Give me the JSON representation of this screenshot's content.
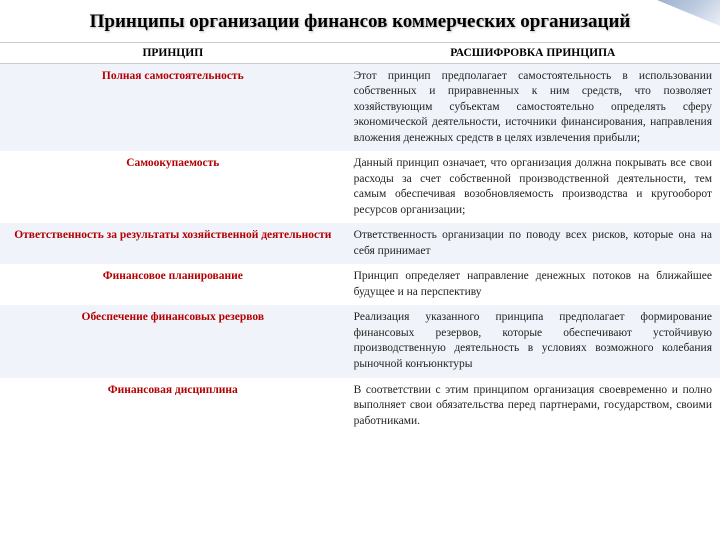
{
  "title": "Принципы организации финансов коммерческих организаций",
  "headers": {
    "principle": "ПРИНЦИП",
    "description": "РАСШИФРОВКА ПРИНЦИПА"
  },
  "rows": [
    {
      "principle": "Полная самостоятельность",
      "description": "Этот принцип предполагает самостоятельность в использовании собственных и приравненных к ним средств, что позволяет хозяйствующим субъектам самостоятельно определять сферу экономической деятельности, источники финансирования, направления вложения денежных средств в целях извлечения прибыли;",
      "band": "light"
    },
    {
      "principle": "Самоокупаемость",
      "description": "Данный принцип означает, что организация должна покрывать все свои расходы за счет собственной производственной деятельности, тем самым обеспечивая возобновляемость производства и кругооборот ресурсов организации;",
      "band": "white"
    },
    {
      "principle": "Ответственность за результаты хозяйственной деятельности",
      "description": "Ответственность организации по поводу всех рисков, которые она на себя принимает",
      "band": "light"
    },
    {
      "principle": "Финансовое планирование",
      "description": " Принцип определяет направление денежных потоков на ближайшее будущее и на перспективу",
      "band": "white"
    },
    {
      "principle": "Обеспечение финансовых резервов",
      "description": "Реализация указанного принципа предполагает формирование финансовых резервов, которые обеспечивают устойчивую производственную деятельность в условиях возможного колебания рыночной конъюнктуры",
      "band": "light"
    },
    {
      "principle": "Финансовая дисциплина",
      "description": " В соответствии с этим принципом организация своевременно и полно выполняет свои обязательства перед партнерами, государством, своими работниками.",
      "band": "white"
    }
  ],
  "colors": {
    "principle_text": "#b40000",
    "band_light": "#f0f4fa",
    "band_white": "#ffffff"
  }
}
